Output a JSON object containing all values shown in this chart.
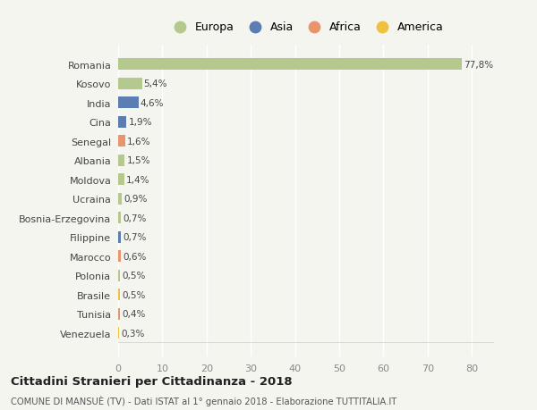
{
  "countries": [
    "Romania",
    "Kosovo",
    "India",
    "Cina",
    "Senegal",
    "Albania",
    "Moldova",
    "Ucraina",
    "Bosnia-Erzegovina",
    "Filippine",
    "Marocco",
    "Polonia",
    "Brasile",
    "Tunisia",
    "Venezuela"
  ],
  "values": [
    77.8,
    5.4,
    4.6,
    1.9,
    1.6,
    1.5,
    1.4,
    0.9,
    0.7,
    0.7,
    0.6,
    0.5,
    0.5,
    0.4,
    0.3
  ],
  "labels": [
    "77,8%",
    "5,4%",
    "4,6%",
    "1,9%",
    "1,6%",
    "1,5%",
    "1,4%",
    "0,9%",
    "0,7%",
    "0,7%",
    "0,6%",
    "0,5%",
    "0,5%",
    "0,4%",
    "0,3%"
  ],
  "colors": [
    "#b5c98e",
    "#b5c98e",
    "#5b7db1",
    "#5b7db1",
    "#e8956d",
    "#b5c98e",
    "#b5c98e",
    "#b5c98e",
    "#b5c98e",
    "#5b7db1",
    "#e8956d",
    "#b5c98e",
    "#f0c040",
    "#e8956d",
    "#f0c040"
  ],
  "continent_colors": {
    "Europa": "#b5c98e",
    "Asia": "#5b7db1",
    "Africa": "#e8956d",
    "America": "#f0c040"
  },
  "title": "Cittadini Stranieri per Cittadinanza - 2018",
  "subtitle": "COMUNE DI MANSUÈ (TV) - Dati ISTAT al 1° gennaio 2018 - Elaborazione TUTTITALIA.IT",
  "xlim": [
    0,
    85
  ],
  "xticks": [
    0,
    10,
    20,
    30,
    40,
    50,
    60,
    70,
    80
  ],
  "background_color": "#f5f5f0",
  "grid_color": "#ffffff"
}
